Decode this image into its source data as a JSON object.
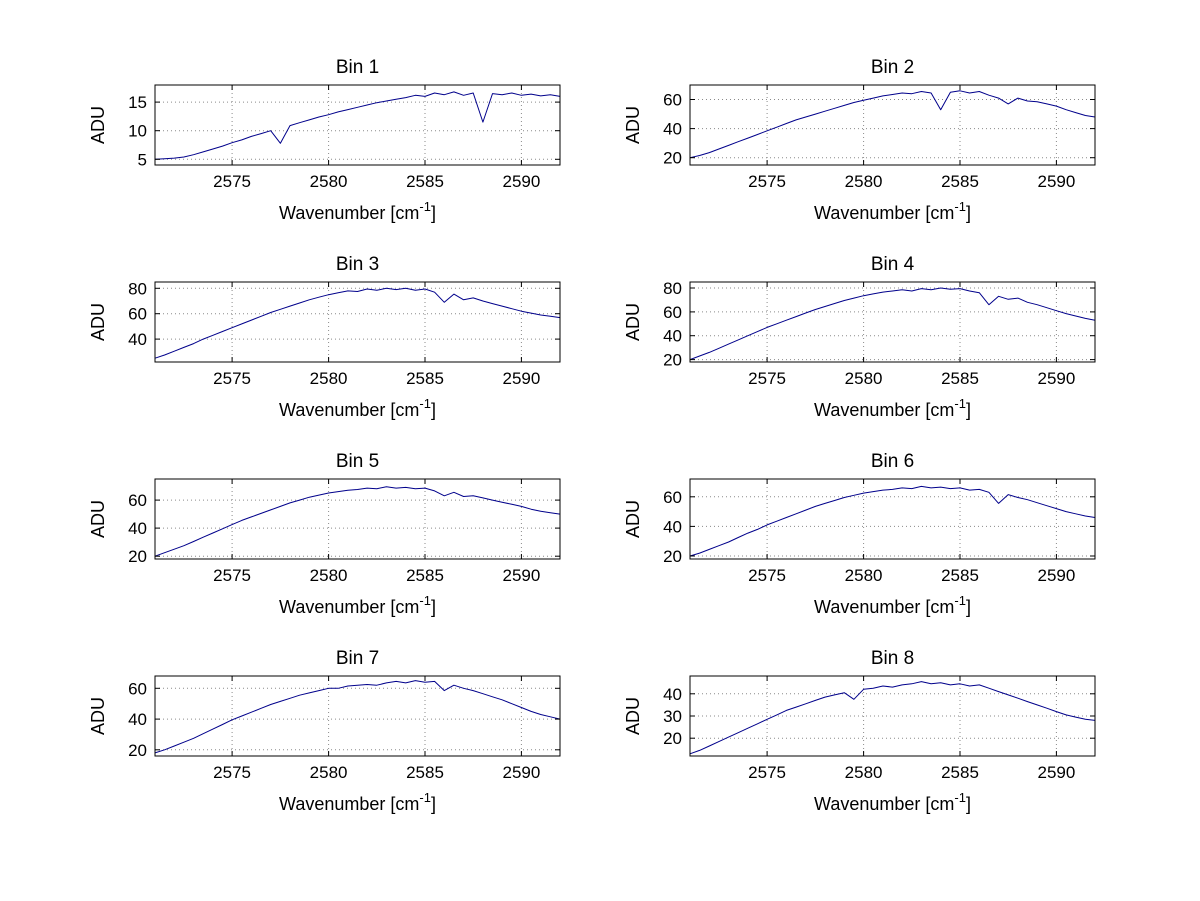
{
  "figure": {
    "background": "#ffffff",
    "line_color": "#00008B",
    "grid_color": "#8a8a8a",
    "axis_color": "#000000",
    "text_color": "#000000"
  },
  "chart_common": {
    "type": "line",
    "xlabel_prefix": "Wavenumber [cm",
    "xlabel_sup": "-1",
    "xlabel_suffix": "]",
    "ylabel": "ADU",
    "xlim": [
      2571,
      2592
    ],
    "xticks": [
      2575,
      2580,
      2585,
      2590
    ],
    "grid": true,
    "x": [
      2571,
      2571.5,
      2572,
      2572.5,
      2573,
      2573.5,
      2574,
      2574.5,
      2575,
      2575.5,
      2576,
      2576.5,
      2577,
      2577.5,
      2578,
      2578.5,
      2579,
      2579.5,
      2580,
      2580.5,
      2581,
      2581.5,
      2582,
      2582.5,
      2583,
      2583.5,
      2584,
      2584.5,
      2585,
      2585.5,
      2586,
      2586.5,
      2587,
      2587.5,
      2588,
      2588.5,
      2589,
      2589.5,
      2590,
      2590.5,
      2591,
      2591.5,
      2592
    ]
  },
  "chart_data": [
    {
      "type": "line",
      "title": "Bin 1",
      "ylim": [
        4,
        18
      ],
      "yticks": [
        5,
        10,
        15
      ],
      "y": [
        5.0,
        5.1,
        5.2,
        5.4,
        5.8,
        6.3,
        6.8,
        7.3,
        7.9,
        8.4,
        9.0,
        9.5,
        10.0,
        7.8,
        10.9,
        11.4,
        11.9,
        12.4,
        12.8,
        13.3,
        13.7,
        14.1,
        14.5,
        14.9,
        15.2,
        15.5,
        15.8,
        16.2,
        16.0,
        16.6,
        16.3,
        16.8,
        16.2,
        16.6,
        11.5,
        16.5,
        16.3,
        16.6,
        16.2,
        16.4,
        16.1,
        16.3,
        16.0
      ]
    },
    {
      "type": "line",
      "title": "Bin 2",
      "ylim": [
        15,
        70
      ],
      "yticks": [
        20,
        40,
        60
      ],
      "y": [
        20,
        21.5,
        23.5,
        26,
        28.5,
        31,
        33.5,
        36,
        38.5,
        41,
        43.5,
        46,
        48,
        50,
        52,
        54,
        56,
        58,
        59.5,
        61,
        62.5,
        63.5,
        64.5,
        64,
        65.5,
        64.5,
        53,
        65,
        66,
        64.5,
        65.5,
        63,
        61,
        57,
        61,
        59,
        58.5,
        57,
        55.5,
        53,
        51,
        49,
        48
      ]
    },
    {
      "type": "line",
      "title": "Bin 3",
      "ylim": [
        22,
        85
      ],
      "yticks": [
        40,
        60,
        80
      ],
      "y": [
        25,
        27.5,
        30.5,
        33.5,
        36.5,
        40,
        43,
        46,
        49,
        52,
        55,
        58,
        61,
        63.5,
        66,
        68.5,
        71,
        73,
        75,
        76.5,
        78,
        77.5,
        79.5,
        78.5,
        80,
        79,
        80,
        78.5,
        79.5,
        77,
        69,
        75.5,
        71,
        72.5,
        70,
        68,
        66,
        64,
        62,
        60.5,
        59,
        58,
        57
      ]
    },
    {
      "type": "line",
      "title": "Bin 4",
      "ylim": [
        18,
        85
      ],
      "yticks": [
        20,
        40,
        60,
        80
      ],
      "y": [
        20,
        23,
        26,
        29.5,
        33,
        36.5,
        40,
        43.5,
        47,
        50,
        53,
        56,
        59,
        62,
        64.5,
        67,
        69.5,
        71.5,
        73.5,
        75,
        76.5,
        77.5,
        78.5,
        77.5,
        79.5,
        78.5,
        80,
        79,
        79.5,
        77.5,
        76,
        66,
        73,
        70.5,
        71.5,
        68,
        66,
        63.5,
        61,
        58.5,
        56.5,
        54.5,
        53
      ]
    },
    {
      "type": "line",
      "title": "Bin 5",
      "ylim": [
        18,
        75
      ],
      "yticks": [
        20,
        40,
        60
      ],
      "y": [
        20,
        22.5,
        25,
        27.5,
        30.5,
        33.5,
        36.5,
        39.5,
        42.5,
        45.5,
        48,
        50.5,
        53,
        55.5,
        58,
        60,
        62,
        63.5,
        65,
        66,
        67,
        67.5,
        68.5,
        68,
        69.5,
        68.5,
        69,
        68,
        68.5,
        66.5,
        63,
        65.5,
        62.5,
        63,
        61.5,
        60,
        58.5,
        57,
        55.5,
        53.5,
        52,
        51,
        50
      ]
    },
    {
      "type": "line",
      "title": "Bin 6",
      "ylim": [
        18,
        72
      ],
      "yticks": [
        20,
        40,
        60
      ],
      "y": [
        20,
        22,
        24.5,
        27,
        29.5,
        32.5,
        35.5,
        38,
        41,
        43.5,
        46,
        48.5,
        51,
        53.5,
        55.5,
        57.5,
        59.5,
        61,
        62.5,
        63.5,
        64.5,
        65,
        66,
        65.5,
        67,
        66,
        66.5,
        65.5,
        66,
        64.5,
        65,
        63,
        55.5,
        61.5,
        59.5,
        58,
        56,
        54,
        52,
        50,
        48.5,
        47,
        46
      ]
    },
    {
      "type": "line",
      "title": "Bin 7",
      "ylim": [
        16,
        68
      ],
      "yticks": [
        20,
        40,
        60
      ],
      "y": [
        18,
        20,
        22.5,
        25,
        27.5,
        30.5,
        33.5,
        36.5,
        39.5,
        42,
        44.5,
        47,
        49.5,
        51.5,
        53.5,
        55.5,
        57,
        58.5,
        60,
        60,
        61.5,
        62,
        62.5,
        62,
        63.5,
        64.5,
        63.5,
        65,
        64,
        64.5,
        58.5,
        62,
        60,
        58.5,
        56.5,
        54.5,
        52.5,
        50,
        47.5,
        45,
        43,
        41.5,
        40
      ]
    },
    {
      "type": "line",
      "title": "Bin 8",
      "ylim": [
        12,
        48
      ],
      "yticks": [
        20,
        30,
        40
      ],
      "y": [
        13,
        14.5,
        16.5,
        18.5,
        20.5,
        22.5,
        24.5,
        26.5,
        28.5,
        30.5,
        32.5,
        34,
        35.5,
        37,
        38.5,
        39.5,
        40.5,
        37.5,
        42,
        42.5,
        43.5,
        43,
        44,
        44.5,
        45.5,
        44.5,
        45,
        44,
        44.5,
        43.5,
        44,
        42.5,
        41,
        39.5,
        38,
        36.5,
        35,
        33.5,
        32,
        30.5,
        29.5,
        28.5,
        28
      ]
    }
  ]
}
